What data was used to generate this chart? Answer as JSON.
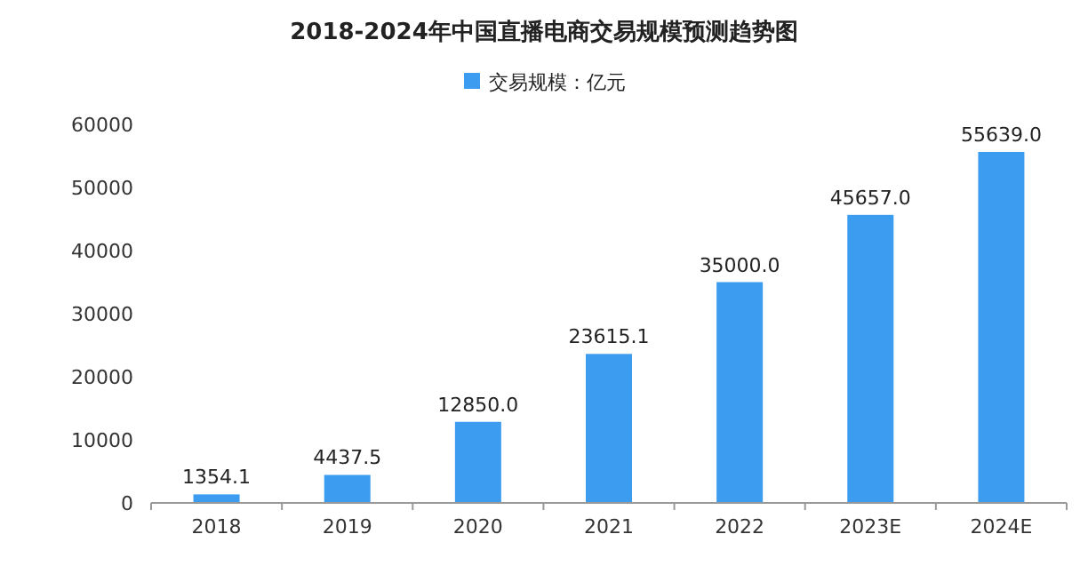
{
  "chart_data": {
    "type": "bar",
    "title": "2018-2024年中国直播电商交易规模预测趋势图",
    "categories": [
      "2018",
      "2019",
      "2020",
      "2021",
      "2022",
      "2023E",
      "2024E"
    ],
    "series": [
      {
        "name": "交易规模：亿元",
        "color": "#3c9cf0",
        "values": [
          1354.1,
          4437.5,
          12850.0,
          23615.1,
          35000.0,
          45657.0,
          55639.0
        ],
        "value_labels": [
          "1354.1",
          "4437.5",
          "12850.0",
          "23615.1",
          "35000.0",
          "45657.0",
          "55639.0"
        ]
      }
    ],
    "ylim": [
      0,
      60000
    ],
    "yticks": [
      0,
      10000,
      20000,
      30000,
      40000,
      50000,
      60000
    ],
    "grid": false,
    "legend": "top"
  }
}
